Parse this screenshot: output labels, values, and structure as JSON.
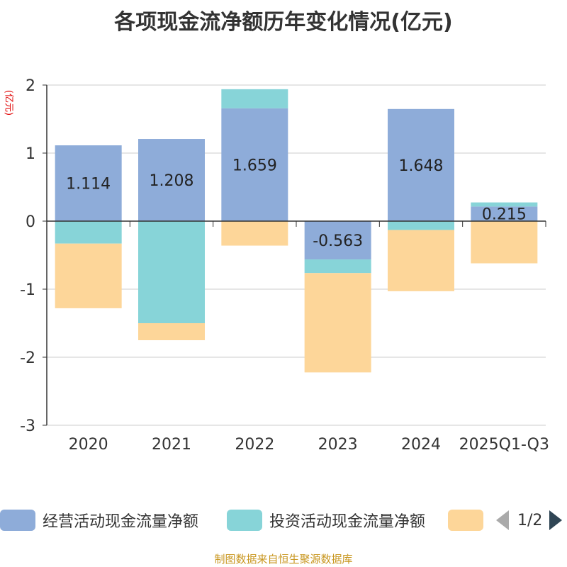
{
  "title": "各项现金流净额历年变化情况(亿元)",
  "unit_label": "(亿元)",
  "source": "制图数据来自恒生聚源数据库",
  "legend": {
    "items": [
      {
        "label": "经营活动现金流量净额",
        "color": "#8eacd9"
      },
      {
        "label": "投资活动现金流量净额",
        "color": "#87d4d8"
      },
      {
        "label": "",
        "color": "#fdd699"
      }
    ],
    "page": "1/2"
  },
  "chart_data": {
    "type": "bar",
    "stacked": true,
    "title": "各项现金流净额历年变化情况(亿元)",
    "ylabel": "(亿元)",
    "ylim": [
      -3,
      2
    ],
    "yticks": [
      2,
      1,
      0,
      -1,
      -2,
      -3
    ],
    "categories": [
      "2020",
      "2021",
      "2022",
      "2023",
      "2024",
      "2025Q1-Q3"
    ],
    "series": [
      {
        "name": "经营活动现金流量净额",
        "color": "#8eacd9",
        "values": [
          1.114,
          1.208,
          1.659,
          -0.563,
          1.648,
          0.215
        ],
        "labels": [
          "1.114",
          "1.208",
          "1.659",
          "-0.563",
          "1.648",
          "0.215"
        ]
      },
      {
        "name": "投资活动现金流量净额",
        "color": "#87d4d8",
        "values": [
          -0.33,
          -1.5,
          0.28,
          -0.2,
          -0.13,
          0.06
        ]
      },
      {
        "name": "",
        "color": "#fdd699",
        "values": [
          -0.95,
          -0.25,
          -0.36,
          -1.46,
          -0.9,
          -0.62
        ]
      }
    ]
  }
}
